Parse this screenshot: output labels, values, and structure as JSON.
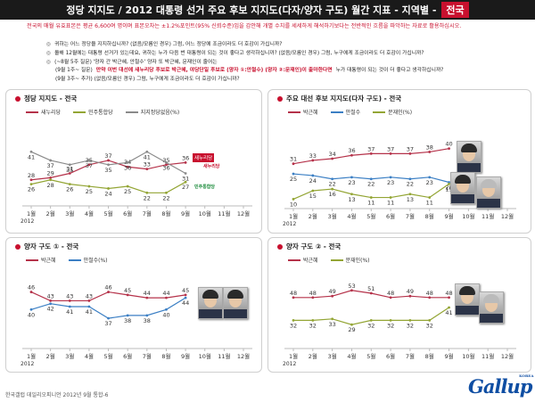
{
  "header": {
    "title": "정당 지지도 / 2012 대통령 선거 주요 후보 지지도(다자/양자 구도) 월간 지표 - 지역별 -",
    "region_tag": "전국"
  },
  "intro": "전국의 매월 유효표본은 평균 6,600여 명이며 표본오차는 ±1.2%포인트(95% 신뢰수준)임을 감안해 개별 수치를 세세하게 해석하기보다는 전반적인 흐름을 파악하는 자료로 활용하십시오.",
  "questions": [
    {
      "bullet": "◎",
      "text": "귀하는 어느 정당을 지지하십니까? (없음/모름인 경우) 그럼, 어느 정당에 조금이라도 더 호감이 가십니까?"
    },
    {
      "bullet": "◎",
      "text": "올해 12월에는 대통령 선거가 있는데요, 귀하는 누가 다음 번 대통령이 되는 것이 좋다고 생각하십니까? (없음/모름인 경우) 그럼, 누구에게 조금이라도 더 호감이 가십니까?"
    },
    {
      "bullet": "◎",
      "text": "(~8월 5주 질문) '양자 간 박근혜, 안철수' 양자 또 박근혜, 문재인이 줄어는"
    },
    {
      "bullet": "",
      "text_pre": "(9월 1주~ 질문)",
      "text_strong": "만약 이번 대선에 새누리당 후보로 박근혜, 야당단일 후보로 (양자 ①:안철수) (양자 ②:문재인)이 출마한다면",
      "text_post": "누가 대통령이 되는 것이 더 좋다고 생각하십니까?"
    },
    {
      "bullet": "",
      "text": "(9월 3주~ 추가) (없음/모름인 경우) 그럼, 누구에게 조금이라도 더 호감이 가십니까?"
    }
  ],
  "panels": [
    {
      "title": "정당 지지도 - 전국",
      "legend": [
        "새누리당",
        "민주통합당",
        "지지정당없음(%)"
      ]
    },
    {
      "title": "주요 대선 후보 지지도(다자 구도) - 전국",
      "legend": [
        "박근혜",
        "안철수",
        "문재인(%)"
      ]
    },
    {
      "title": "양자 구도 ① - 전국",
      "legend": [
        "박근혜",
        "안철수(%)"
      ]
    },
    {
      "title": "양자 구도 ② - 전국",
      "legend": [
        "박근혜",
        "문재인(%)"
      ]
    }
  ],
  "logos": {
    "saenuri": "새누리당",
    "saenuri_sub": "새누리당",
    "minju": "민주통합당"
  },
  "footer": "한국갤럽 데일리오피니언 2012년 9월 통합-6",
  "brand": {
    "name": "Gallup",
    "sub": "KOREA"
  },
  "colors": {
    "red": "#b5324a",
    "blue": "#3b7fc4",
    "olive": "#93a534",
    "gray": "#8a8a8a"
  },
  "chart_data": [
    {
      "type": "line",
      "title": "정당 지지도 - 전국",
      "categories": [
        "1월",
        "2월",
        "3월",
        "4월",
        "5월",
        "6월",
        "7월",
        "8월",
        "9월",
        "10월",
        "11월",
        "12월"
      ],
      "year_label": "2012",
      "series": [
        {
          "name": "새누리당",
          "values": [
            28,
            29,
            31,
            35,
            37,
            34,
            33,
            35,
            36,
            null,
            null,
            null
          ]
        },
        {
          "name": "민주통합당",
          "values": [
            26,
            28,
            26,
            25,
            24,
            25,
            22,
            22,
            27,
            null,
            null,
            null
          ]
        },
        {
          "name": "지지정당없음(%)",
          "values": [
            41,
            37,
            35,
            37,
            35,
            36,
            41,
            36,
            31,
            null,
            null,
            null
          ]
        }
      ]
    },
    {
      "type": "line",
      "title": "주요 대선 후보 지지도(다자 구도) - 전국",
      "categories": [
        "1월",
        "2월",
        "3월",
        "4월",
        "5월",
        "6월",
        "7월",
        "8월",
        "9월",
        "10월",
        "11월",
        "12월"
      ],
      "year_label": "2012",
      "series": [
        {
          "name": "박근혜",
          "values": [
            31,
            33,
            34,
            36,
            37,
            37,
            37,
            38,
            40,
            null,
            null,
            null
          ]
        },
        {
          "name": "안철수",
          "values": [
            25,
            24,
            22,
            23,
            22,
            23,
            22,
            23,
            20,
            null,
            null,
            null
          ]
        },
        {
          "name": "문재인(%)",
          "values": [
            10,
            15,
            16,
            13,
            11,
            11,
            13,
            11,
            19,
            null,
            null,
            null
          ]
        }
      ]
    },
    {
      "type": "line",
      "title": "양자 구도 ① - 전국",
      "categories": [
        "1월",
        "2월",
        "3월",
        "4월",
        "5월",
        "6월",
        "7월",
        "8월",
        "9월",
        "10월",
        "11월",
        "12월"
      ],
      "year_label": "2012",
      "series": [
        {
          "name": "박근혜",
          "values": [
            46,
            43,
            43,
            43,
            46,
            45,
            44,
            44,
            45,
            null,
            null,
            null
          ]
        },
        {
          "name": "안철수(%)",
          "values": [
            40,
            42,
            41,
            41,
            37,
            38,
            38,
            40,
            44,
            null,
            null,
            null
          ]
        }
      ]
    },
    {
      "type": "line",
      "title": "양자 구도 ② - 전국",
      "categories": [
        "1월",
        "2월",
        "3월",
        "4월",
        "5월",
        "6월",
        "7월",
        "8월",
        "9월",
        "10월",
        "11월",
        "12월"
      ],
      "year_label": "2012",
      "series": [
        {
          "name": "박근혜",
          "values": [
            48,
            48,
            49,
            53,
            51,
            48,
            49,
            48,
            48,
            null,
            null,
            null
          ]
        },
        {
          "name": "문재인(%)",
          "values": [
            32,
            32,
            33,
            29,
            32,
            32,
            32,
            32,
            41,
            null,
            null,
            null
          ]
        }
      ]
    }
  ]
}
